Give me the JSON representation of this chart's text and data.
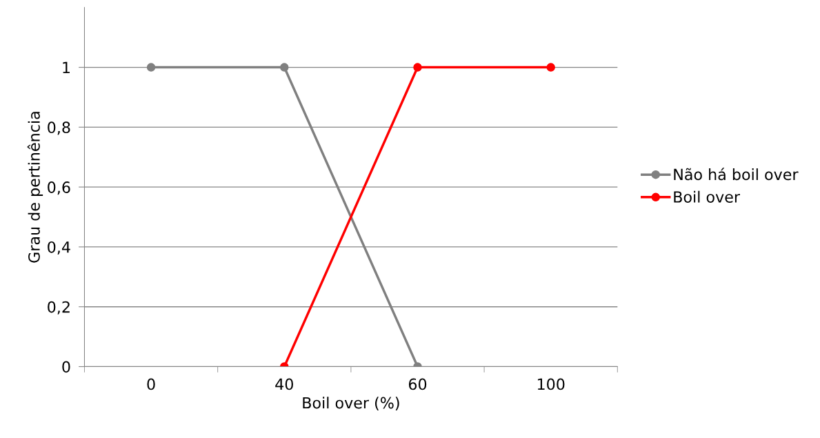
{
  "chart_data": {
    "type": "line",
    "xlabel": "Boil over (%)",
    "ylabel": "Grau de pertinência",
    "categories": [
      "0",
      "40",
      "60",
      "100"
    ],
    "series": [
      {
        "name": "Não há boil over",
        "color": "#808080",
        "values": [
          1,
          1,
          0,
          null
        ]
      },
      {
        "name": "Boil over",
        "color": "#ff0000",
        "values": [
          null,
          0,
          1,
          1
        ]
      }
    ],
    "ylim": [
      0,
      1.2
    ],
    "yticks": [
      0,
      {
        "value": 0.2,
        "label": "0,2"
      },
      {
        "value": 0.4,
        "label": "0,4"
      },
      {
        "value": 0.6,
        "label": "0,6"
      },
      {
        "value": 0.8,
        "label": "0,8"
      },
      1
    ],
    "grid": "y",
    "legend": "right",
    "marker": "circle",
    "line_style": "solid"
  }
}
